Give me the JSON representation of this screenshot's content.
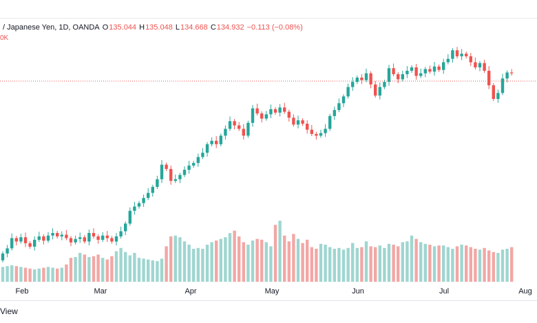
{
  "legend": {
    "symbol": "/ Japanese Yen, 1D, OANDA",
    "o_label": "O",
    "o_value": "135.044",
    "h_label": "H",
    "h_value": "135.048",
    "l_label": "L",
    "l_value": "134.668",
    "c_label": "C",
    "c_value": "134.932",
    "change": "−0.113 (−0.08%)",
    "vol_fragment": "0K"
  },
  "footer": {
    "view_text": "View"
  },
  "colors": {
    "up": "#26a69a",
    "down": "#ef5350",
    "vol_up": "#9fd6d0",
    "vol_down": "#f2a7a5"
  },
  "chart_data": {
    "type": "candlestick",
    "x_tick_labels": [
      "Feb",
      "Mar",
      "Apr",
      "May",
      "Jun",
      "Jul",
      "Aug"
    ],
    "last_price_line": 134.932,
    "y_scale": "price (relative), daily candles",
    "series": [
      {
        "name": "price",
        "values": [
          [
            113.0,
            113.8
          ],
          [
            113.8,
            114.4
          ],
          [
            114.4,
            115.6
          ],
          [
            115.6,
            115.2
          ],
          [
            115.2,
            115.7
          ],
          [
            115.7,
            115.0
          ],
          [
            115.0,
            114.6
          ],
          [
            114.6,
            115.4
          ],
          [
            115.4,
            115.8
          ],
          [
            115.8,
            115.3
          ],
          [
            115.3,
            115.9
          ],
          [
            115.9,
            116.2
          ],
          [
            116.2,
            115.8
          ],
          [
            115.8,
            116.0
          ],
          [
            116.0,
            115.6
          ],
          [
            115.6,
            115.1
          ],
          [
            115.1,
            115.5
          ],
          [
            115.5,
            115.7
          ],
          [
            115.7,
            115.2
          ],
          [
            115.2,
            116.2
          ],
          [
            116.2,
            115.8
          ],
          [
            115.8,
            115.4
          ],
          [
            115.4,
            115.9
          ],
          [
            115.9,
            115.6
          ],
          [
            115.6,
            115.2
          ],
          [
            115.2,
            115.8
          ],
          [
            115.8,
            116.4
          ],
          [
            116.4,
            117.3
          ],
          [
            117.3,
            118.8
          ],
          [
            118.8,
            119.3
          ],
          [
            119.3,
            119.7
          ],
          [
            119.7,
            120.3
          ],
          [
            120.3,
            120.9
          ],
          [
            120.9,
            121.6
          ],
          [
            121.6,
            122.5
          ],
          [
            122.5,
            124.2
          ],
          [
            124.2,
            123.7
          ],
          [
            123.7,
            122.3
          ],
          [
            122.3,
            122.5
          ],
          [
            122.5,
            123.0
          ],
          [
            123.0,
            123.6
          ],
          [
            123.6,
            124.1
          ],
          [
            124.1,
            124.4
          ],
          [
            124.4,
            125.1
          ],
          [
            125.1,
            125.6
          ],
          [
            125.6,
            126.6
          ],
          [
            126.6,
            127.0
          ],
          [
            127.0,
            126.6
          ],
          [
            126.6,
            127.6
          ],
          [
            127.6,
            128.4
          ],
          [
            128.4,
            129.3
          ],
          [
            129.3,
            128.8
          ],
          [
            128.8,
            128.4
          ],
          [
            128.4,
            127.6
          ],
          [
            127.6,
            129.1
          ],
          [
            129.1,
            130.8
          ],
          [
            130.8,
            130.2
          ],
          [
            130.2,
            129.6
          ],
          [
            129.6,
            130.1
          ],
          [
            130.1,
            130.7
          ],
          [
            130.7,
            130.3
          ],
          [
            130.3,
            130.9
          ],
          [
            130.9,
            130.4
          ],
          [
            130.4,
            129.7
          ],
          [
            129.7,
            128.9
          ],
          [
            128.9,
            129.4
          ],
          [
            129.4,
            129.0
          ],
          [
            129.0,
            128.3
          ],
          [
            128.3,
            127.8
          ],
          [
            127.8,
            127.6
          ],
          [
            127.6,
            127.9
          ],
          [
            127.9,
            128.4
          ],
          [
            128.4,
            129.9
          ],
          [
            129.9,
            130.6
          ],
          [
            130.6,
            131.4
          ],
          [
            131.4,
            132.2
          ],
          [
            132.2,
            133.3
          ],
          [
            133.3,
            133.9
          ],
          [
            133.9,
            134.4
          ],
          [
            134.4,
            134.1
          ],
          [
            134.1,
            134.9
          ],
          [
            134.9,
            133.6
          ],
          [
            133.6,
            132.3
          ],
          [
            132.3,
            133.3
          ],
          [
            133.3,
            133.9
          ],
          [
            133.9,
            135.5
          ],
          [
            135.5,
            134.8
          ],
          [
            134.8,
            134.2
          ],
          [
            134.2,
            134.8
          ],
          [
            134.8,
            135.2
          ],
          [
            135.2,
            135.6
          ],
          [
            135.6,
            134.6
          ],
          [
            134.6,
            134.9
          ],
          [
            134.9,
            135.4
          ],
          [
            135.4,
            135.1
          ],
          [
            135.1,
            135.7
          ],
          [
            135.7,
            135.3
          ],
          [
            135.3,
            136.2
          ],
          [
            136.2,
            136.6
          ],
          [
            136.6,
            137.6
          ],
          [
            137.6,
            136.9
          ],
          [
            136.9,
            137.2
          ],
          [
            137.2,
            136.9
          ],
          [
            136.9,
            136.2
          ],
          [
            136.2,
            135.6
          ],
          [
            135.6,
            136.1
          ],
          [
            136.1,
            135.2
          ],
          [
            135.2,
            133.5
          ],
          [
            133.5,
            131.9
          ],
          [
            131.9,
            132.6
          ],
          [
            132.6,
            134.3
          ],
          [
            134.3,
            135.0
          ],
          [
            135.0,
            134.9
          ]
        ]
      },
      {
        "name": "volume",
        "values": [
          18,
          19,
          20,
          19,
          18,
          17,
          16,
          15,
          16,
          17,
          18,
          17,
          16,
          17,
          21,
          29,
          30,
          35,
          33,
          30,
          31,
          33,
          29,
          27,
          31,
          37,
          41,
          36,
          32,
          35,
          29,
          28,
          27,
          26,
          25,
          28,
          43,
          55,
          56,
          54,
          49,
          45,
          40,
          41,
          40,
          45,
          48,
          50,
          52,
          54,
          59,
          62,
          55,
          48,
          45,
          50,
          52,
          51,
          48,
          43,
          69,
          74,
          56,
          49,
          58,
          52,
          47,
          51,
          42,
          40,
          46,
          45,
          42,
          40,
          41,
          39,
          41,
          47,
          41,
          42,
          49,
          43,
          42,
          44,
          41,
          46,
          45,
          43,
          48,
          49,
          56,
          52,
          48,
          46,
          45,
          43,
          44,
          44,
          42,
          40,
          43,
          45,
          44,
          42,
          40,
          39,
          41,
          38,
          36,
          35,
          39,
          40,
          42
        ]
      }
    ]
  }
}
